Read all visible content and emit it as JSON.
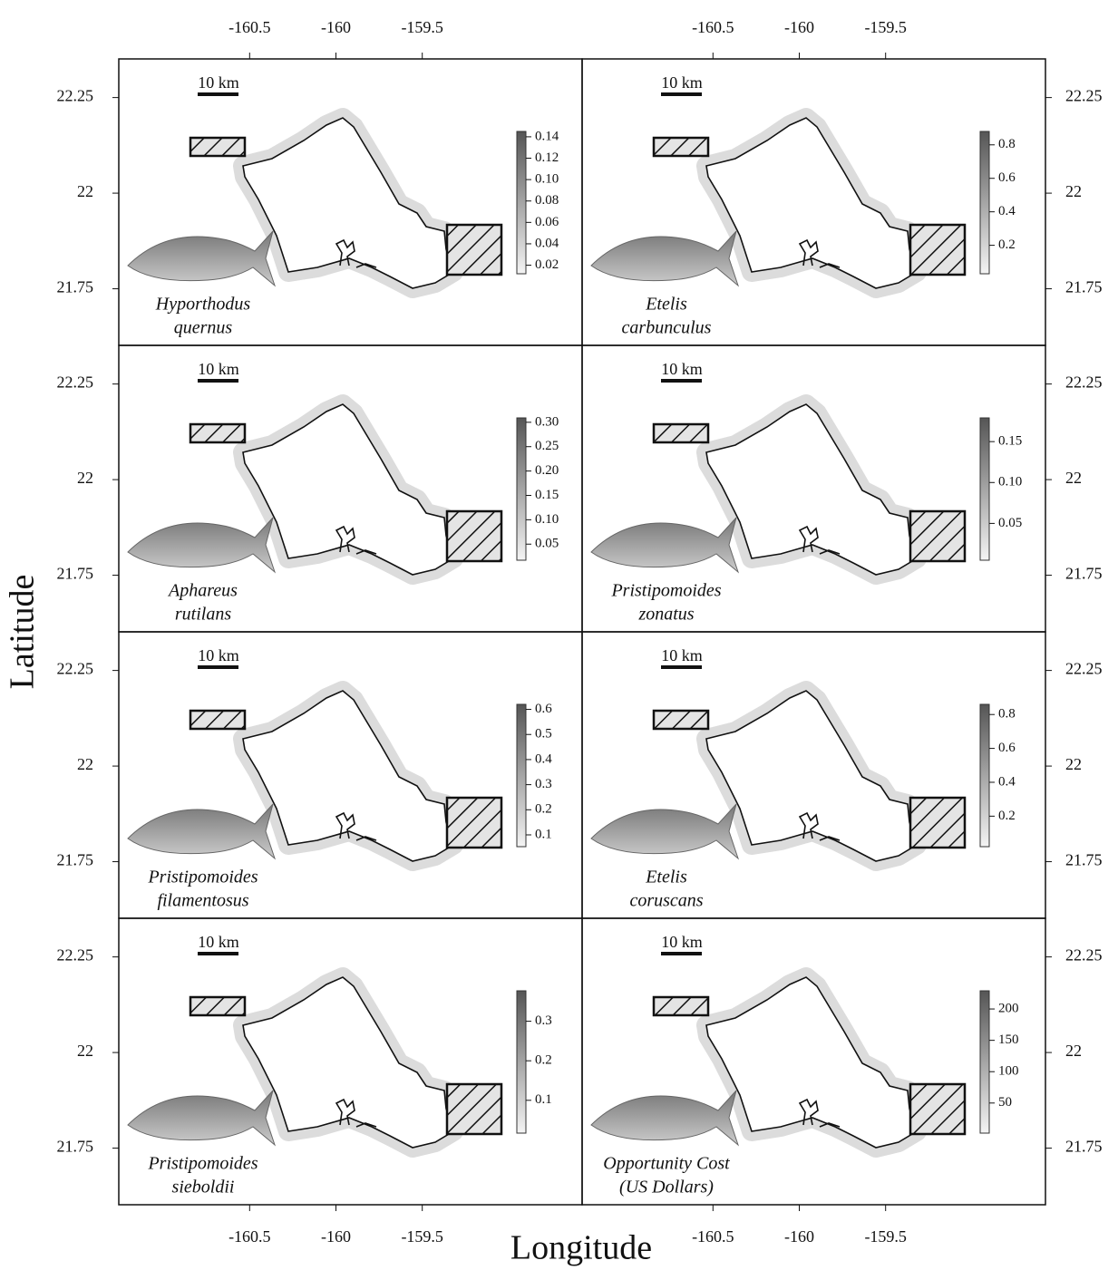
{
  "axes": {
    "x_label": "Longitude",
    "y_label": "Latitude",
    "xlim": [
      -161.258,
      -158.574
    ],
    "ylim": [
      21.602,
      22.351
    ],
    "xticks": [
      -160.5,
      -160,
      -159.5
    ],
    "yticks": [
      21.75,
      22,
      22.25
    ]
  },
  "scale_label": "10 km",
  "panels": [
    {
      "label": [
        "Hyporthodus",
        "quernus"
      ],
      "clim": [
        0.012,
        0.145
      ],
      "cticks": [
        0.02,
        0.04,
        0.06,
        0.08,
        {
          "value": 0.1,
          "label": "0.10"
        },
        0.12,
        0.14
      ]
    },
    {
      "label": [
        "Etelis",
        "carbunculus"
      ],
      "clim": [
        0.03,
        0.88
      ],
      "cticks": [
        0.2,
        0.4,
        0.6,
        0.8
      ]
    },
    {
      "label": [
        "Aphareus",
        "rutilans"
      ],
      "clim": [
        0.017,
        0.309
      ],
      "cticks": [
        0.05,
        {
          "value": 0.1,
          "label": "0.10"
        },
        0.15,
        {
          "value": 0.2,
          "label": "0.20"
        },
        0.25,
        {
          "value": 0.3,
          "label": "0.30"
        }
      ]
    },
    {
      "label": [
        "Pristipomoides",
        "zonatus"
      ],
      "clim": [
        0.005,
        0.179
      ],
      "cticks": [
        0.05,
        {
          "value": 0.1,
          "label": "0.10"
        },
        0.15
      ]
    },
    {
      "label": [
        "Pristipomoides",
        "filamentosus"
      ],
      "clim": [
        0.053,
        0.62
      ],
      "cticks": [
        0.1,
        0.2,
        0.3,
        0.4,
        0.5,
        0.6
      ]
    },
    {
      "label": [
        "Etelis",
        "coruscans"
      ],
      "clim": [
        0.02,
        0.86
      ],
      "cticks": [
        0.2,
        0.4,
        0.6,
        0.8
      ]
    },
    {
      "label": [
        "Pristipomoides",
        "sieboldii"
      ],
      "clim": [
        0.017,
        0.377
      ],
      "cticks": [
        0.1,
        0.2,
        0.3
      ]
    },
    {
      "label": [
        "Opportunity Cost",
        "(US Dollars)"
      ],
      "clim": [
        2,
        229
      ],
      "cticks": [
        50,
        100,
        150,
        200
      ]
    }
  ]
}
